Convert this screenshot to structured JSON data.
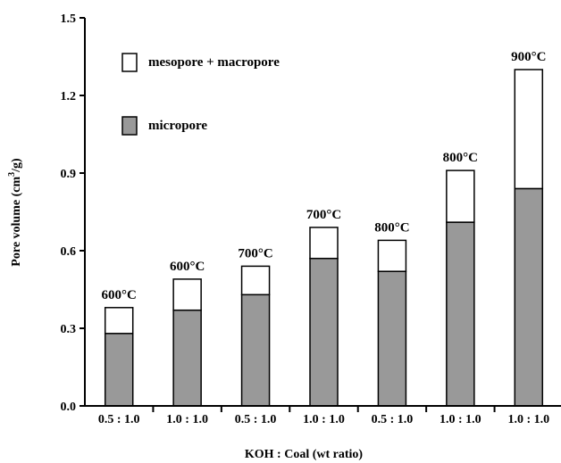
{
  "chart_data": {
    "type": "bar",
    "stacked": true,
    "title": "",
    "xlabel": "KOH : Coal (wt ratio)",
    "ylabel": "Pore volume (cm3/g)",
    "ylabel_parts": {
      "pre": "Pore volume (cm",
      "sup": "3",
      "post": "/g)"
    },
    "ylim": [
      0,
      1.5
    ],
    "yticks": [
      "0.0",
      "0.3",
      "0.6",
      "0.9",
      "1.2",
      "1.5"
    ],
    "categories": [
      "0.5 : 1.0",
      "1.0 : 1.0",
      "0.5 : 1.0",
      "1.0 : 1.0",
      "0.5 : 1.0",
      "1.0 : 1.0",
      "1.0 : 1.0"
    ],
    "temperature_labels": [
      "600°C",
      "600°C",
      "700°C",
      "700°C",
      "800°C",
      "800°C",
      "900°C"
    ],
    "series": [
      {
        "name": "micropore",
        "color": "#999999",
        "values": [
          0.28,
          0.37,
          0.43,
          0.57,
          0.52,
          0.71,
          0.84
        ]
      },
      {
        "name": "mesopore + macropore",
        "color": "#ffffff",
        "values": [
          0.1,
          0.12,
          0.11,
          0.12,
          0.12,
          0.2,
          0.46
        ]
      }
    ],
    "legend": {
      "placement": "top-left",
      "entries": [
        {
          "label": "mesopore + macropore",
          "color": "#ffffff"
        },
        {
          "label": "micropore",
          "color": "#999999"
        }
      ]
    },
    "grid": false
  }
}
